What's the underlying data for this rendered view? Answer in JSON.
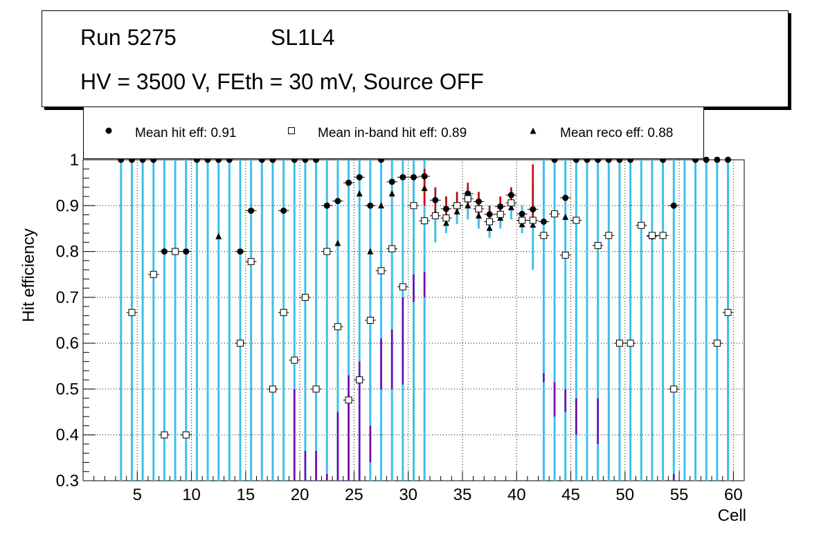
{
  "title": {
    "run": "Run 5275",
    "layer": "SL1L4",
    "conditions": "HV = 3500 V, FEth = 30 mV, Source OFF"
  },
  "legend": {
    "hit": "Mean hit  eff: 0.91",
    "inband": "Mean in-band hit eff: 0.89",
    "reco": "Mean reco eff: 0.88"
  },
  "colors": {
    "hit_err": "#cc0000",
    "inband_err": "#7b00b0",
    "reco_err": "#3cc0ea",
    "marker": "#000000",
    "inband_fill": "#ffffff"
  },
  "chart_data": {
    "type": "scatter",
    "xlabel": "Cell",
    "ylabel": "Hit efficiency",
    "xlim": [
      0,
      61
    ],
    "ylim": [
      0.3,
      1.0
    ],
    "xticks": [
      "5",
      "10",
      "15",
      "20",
      "25",
      "30",
      "35",
      "40",
      "45",
      "50",
      "55",
      "60"
    ],
    "yticks": [
      "0.3",
      "0.4",
      "0.5",
      "0.6",
      "0.7",
      "0.8",
      "0.9",
      "1"
    ],
    "grid": true,
    "series": [
      {
        "name": "Mean hit eff",
        "marker": "circle",
        "points": [
          {
            "x": 3,
            "y": 1.0
          },
          {
            "x": 4,
            "y": 1.0
          },
          {
            "x": 5,
            "y": 1.0
          },
          {
            "x": 6,
            "y": 1.0
          },
          {
            "x": 7,
            "y": 0.8
          },
          {
            "x": 8,
            "y": 0.8
          },
          {
            "x": 9,
            "y": 0.8
          },
          {
            "x": 10,
            "y": 1.0
          },
          {
            "x": 11,
            "y": 1.0
          },
          {
            "x": 12,
            "y": 1.0
          },
          {
            "x": 13,
            "y": 1.0
          },
          {
            "x": 14,
            "y": 0.8
          },
          {
            "x": 15,
            "y": 0.889
          },
          {
            "x": 16,
            "y": 1.0
          },
          {
            "x": 17,
            "y": 1.0
          },
          {
            "x": 18,
            "y": 0.889
          },
          {
            "x": 19,
            "y": 1.0
          },
          {
            "x": 20,
            "y": 1.0
          },
          {
            "x": 21,
            "y": 1.0
          },
          {
            "x": 22,
            "y": 0.9
          },
          {
            "x": 23,
            "y": 0.91
          },
          {
            "x": 24,
            "y": 0.95
          },
          {
            "x": 25,
            "y": 0.962
          },
          {
            "x": 26,
            "y": 0.9
          },
          {
            "x": 27,
            "y": 1.0
          },
          {
            "x": 28,
            "y": 0.952
          },
          {
            "x": 29,
            "y": 0.962
          },
          {
            "x": 30,
            "y": 0.962
          },
          {
            "x": 31,
            "y": 0.964
          },
          {
            "x": 32,
            "y": 0.912
          },
          {
            "x": 33,
            "y": 0.893
          },
          {
            "x": 34,
            "y": 0.9
          },
          {
            "x": 35,
            "y": 0.926
          },
          {
            "x": 36,
            "y": 0.909
          },
          {
            "x": 37,
            "y": 0.881
          },
          {
            "x": 38,
            "y": 0.898
          },
          {
            "x": 39,
            "y": 0.923
          },
          {
            "x": 40,
            "y": 0.882
          },
          {
            "x": 41,
            "y": 0.892
          },
          {
            "x": 42,
            "y": 0.865
          },
          {
            "x": 43,
            "y": 1.0
          },
          {
            "x": 44,
            "y": 0.917
          },
          {
            "x": 45,
            "y": 1.0
          },
          {
            "x": 46,
            "y": 1.0
          },
          {
            "x": 47,
            "y": 1.0
          },
          {
            "x": 48,
            "y": 1.0
          },
          {
            "x": 49,
            "y": 1.0
          },
          {
            "x": 50,
            "y": 1.0
          },
          {
            "x": 51,
            "y": 0.857
          },
          {
            "x": 52,
            "y": 0.833
          },
          {
            "x": 53,
            "y": 1.0
          },
          {
            "x": 54,
            "y": 0.9
          },
          {
            "x": 56,
            "y": 1.0
          },
          {
            "x": 57,
            "y": 1.0
          },
          {
            "x": 58,
            "y": 1.0
          },
          {
            "x": 59,
            "y": 1.0
          }
        ]
      },
      {
        "name": "Mean in-band hit eff",
        "marker": "open-square",
        "points": [
          {
            "x": 4,
            "y": 0.667
          },
          {
            "x": 6,
            "y": 0.75
          },
          {
            "x": 7,
            "y": 0.4
          },
          {
            "x": 8,
            "y": 0.8
          },
          {
            "x": 9,
            "y": 0.4
          },
          {
            "x": 14,
            "y": 0.6
          },
          {
            "x": 15,
            "y": 0.778
          },
          {
            "x": 17,
            "y": 0.5
          },
          {
            "x": 18,
            "y": 0.667
          },
          {
            "x": 19,
            "y": 0.563
          },
          {
            "x": 20,
            "y": 0.7
          },
          {
            "x": 21,
            "y": 0.5
          },
          {
            "x": 22,
            "y": 0.8
          },
          {
            "x": 23,
            "y": 0.636
          },
          {
            "x": 24,
            "y": 0.476
          },
          {
            "x": 25,
            "y": 0.52
          },
          {
            "x": 26,
            "y": 0.65
          },
          {
            "x": 27,
            "y": 0.758
          },
          {
            "x": 28,
            "y": 0.806
          },
          {
            "x": 29,
            "y": 0.723
          },
          {
            "x": 30,
            "y": 0.9
          },
          {
            "x": 31,
            "y": 0.867
          },
          {
            "x": 32,
            "y": 0.878
          },
          {
            "x": 33,
            "y": 0.873
          },
          {
            "x": 34,
            "y": 0.9
          },
          {
            "x": 35,
            "y": 0.915
          },
          {
            "x": 36,
            "y": 0.893
          },
          {
            "x": 37,
            "y": 0.865
          },
          {
            "x": 38,
            "y": 0.881
          },
          {
            "x": 39,
            "y": 0.906
          },
          {
            "x": 40,
            "y": 0.868
          },
          {
            "x": 41,
            "y": 0.868
          },
          {
            "x": 42,
            "y": 0.835
          },
          {
            "x": 43,
            "y": 0.882
          },
          {
            "x": 44,
            "y": 0.792
          },
          {
            "x": 45,
            "y": 0.868
          },
          {
            "x": 47,
            "y": 0.813
          },
          {
            "x": 48,
            "y": 0.835
          },
          {
            "x": 49,
            "y": 0.6
          },
          {
            "x": 50,
            "y": 0.6
          },
          {
            "x": 51,
            "y": 0.857
          },
          {
            "x": 52,
            "y": 0.835
          },
          {
            "x": 53,
            "y": 0.835
          },
          {
            "x": 54,
            "y": 0.5
          },
          {
            "x": 58,
            "y": 0.6
          },
          {
            "x": 59,
            "y": 0.667
          }
        ]
      },
      {
        "name": "Mean reco eff",
        "marker": "triangle",
        "points": [
          {
            "x": 12,
            "y": 0.833
          },
          {
            "x": 14,
            "y": 0.6
          },
          {
            "x": 23,
            "y": 0.818
          },
          {
            "x": 25,
            "y": 0.926
          },
          {
            "x": 26,
            "y": 0.8
          },
          {
            "x": 27,
            "y": 0.9
          },
          {
            "x": 28,
            "y": 0.926
          },
          {
            "x": 31,
            "y": 0.938
          },
          {
            "x": 32,
            "y": 0.882
          },
          {
            "x": 33,
            "y": 0.862
          },
          {
            "x": 34,
            "y": 0.887
          },
          {
            "x": 35,
            "y": 0.9
          },
          {
            "x": 36,
            "y": 0.878
          },
          {
            "x": 37,
            "y": 0.851
          },
          {
            "x": 38,
            "y": 0.873
          },
          {
            "x": 39,
            "y": 0.896
          },
          {
            "x": 40,
            "y": 0.859
          },
          {
            "x": 41,
            "y": 0.858
          },
          {
            "x": 44,
            "y": 0.875
          },
          {
            "x": 51,
            "y": 0.857
          },
          {
            "x": 52,
            "y": 0.833
          }
        ]
      }
    ],
    "error_bars": {
      "reco_full_range_cells": [
        3,
        4,
        5,
        6,
        7,
        8,
        9,
        10,
        11,
        12,
        13,
        14,
        15,
        16,
        17,
        18,
        19,
        20,
        21,
        22,
        23,
        24,
        25,
        26,
        27,
        28,
        29,
        30,
        31,
        42,
        43,
        44,
        45,
        46,
        47,
        48,
        49,
        50,
        51,
        52,
        53,
        54,
        55,
        56,
        57,
        58,
        59
      ],
      "reco_partial": [
        {
          "x": 32,
          "lo": 0.82,
          "hi": 0.94
        },
        {
          "x": 33,
          "lo": 0.84,
          "hi": 0.92
        },
        {
          "x": 34,
          "lo": 0.86,
          "hi": 0.93
        },
        {
          "x": 35,
          "lo": 0.87,
          "hi": 0.94
        },
        {
          "x": 36,
          "lo": 0.85,
          "hi": 0.93
        },
        {
          "x": 37,
          "lo": 0.83,
          "hi": 0.9
        },
        {
          "x": 38,
          "lo": 0.85,
          "hi": 0.92
        },
        {
          "x": 39,
          "lo": 0.87,
          "hi": 0.94
        },
        {
          "x": 40,
          "lo": 0.84,
          "hi": 0.9
        },
        {
          "x": 41,
          "lo": 0.76,
          "hi": 0.95
        }
      ],
      "hit": [
        {
          "x": 31,
          "lo": 0.9,
          "hi": 0.98
        },
        {
          "x": 32,
          "lo": 0.88,
          "hi": 0.94
        },
        {
          "x": 33,
          "lo": 0.87,
          "hi": 0.92
        },
        {
          "x": 34,
          "lo": 0.88,
          "hi": 0.93
        },
        {
          "x": 35,
          "lo": 0.9,
          "hi": 0.95
        },
        {
          "x": 36,
          "lo": 0.88,
          "hi": 0.93
        },
        {
          "x": 37,
          "lo": 0.86,
          "hi": 0.9
        },
        {
          "x": 38,
          "lo": 0.88,
          "hi": 0.92
        },
        {
          "x": 39,
          "lo": 0.9,
          "hi": 0.94
        },
        {
          "x": 41,
          "lo": 0.86,
          "hi": 0.99
        }
      ],
      "inband": [
        {
          "x": 19,
          "lo": 0.3,
          "hi": 0.5
        },
        {
          "x": 20,
          "lo": 0.3,
          "hi": 0.365
        },
        {
          "x": 21,
          "lo": 0.3,
          "hi": 0.365
        },
        {
          "x": 22,
          "lo": 0.3,
          "hi": 0.315
        },
        {
          "x": 23,
          "lo": 0.3,
          "hi": 0.45
        },
        {
          "x": 24,
          "lo": 0.3,
          "hi": 0.53
        },
        {
          "x": 25,
          "lo": 0.3,
          "hi": 0.56
        },
        {
          "x": 26,
          "lo": 0.34,
          "hi": 0.42
        },
        {
          "x": 27,
          "lo": 0.5,
          "hi": 0.61
        },
        {
          "x": 28,
          "lo": 0.5,
          "hi": 0.63
        },
        {
          "x": 29,
          "lo": 0.51,
          "hi": 0.7
        },
        {
          "x": 30,
          "lo": 0.69,
          "hi": 0.75
        },
        {
          "x": 31,
          "lo": 0.7,
          "hi": 0.755
        },
        {
          "x": 42,
          "lo": 0.515,
          "hi": 0.535
        },
        {
          "x": 43,
          "lo": 0.44,
          "hi": 0.515
        },
        {
          "x": 44,
          "lo": 0.45,
          "hi": 0.5
        },
        {
          "x": 45,
          "lo": 0.4,
          "hi": 0.48
        },
        {
          "x": 47,
          "lo": 0.38,
          "hi": 0.48
        },
        {
          "x": 54,
          "lo": 0.3,
          "hi": 0.315
        }
      ]
    }
  }
}
